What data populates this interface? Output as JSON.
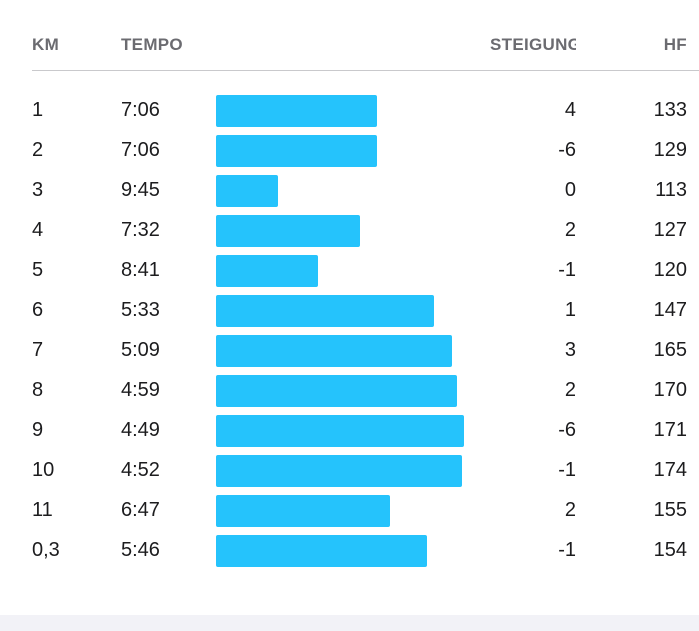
{
  "header": {
    "km": "KM",
    "tempo": "TEMPO",
    "steigung": "STEIGUNG",
    "hf": "HF"
  },
  "splits": [
    {
      "km": "1",
      "tempo": "7:06",
      "steigung": "4",
      "hf": "133",
      "bar_fraction": 0.65
    },
    {
      "km": "2",
      "tempo": "7:06",
      "steigung": "-6",
      "hf": "129",
      "bar_fraction": 0.65
    },
    {
      "km": "3",
      "tempo": "9:45",
      "steigung": "0",
      "hf": "113",
      "bar_fraction": 0.25
    },
    {
      "km": "4",
      "tempo": "7:32",
      "steigung": "2",
      "hf": "127",
      "bar_fraction": 0.58
    },
    {
      "km": "5",
      "tempo": "8:41",
      "steigung": "-1",
      "hf": "120",
      "bar_fraction": 0.41
    },
    {
      "km": "6",
      "tempo": "5:33",
      "steigung": "1",
      "hf": "147",
      "bar_fraction": 0.88
    },
    {
      "km": "7",
      "tempo": "5:09",
      "steigung": "3",
      "hf": "165",
      "bar_fraction": 0.95
    },
    {
      "km": "8",
      "tempo": "4:59",
      "steigung": "2",
      "hf": "170",
      "bar_fraction": 0.97
    },
    {
      "km": "9",
      "tempo": "4:49",
      "steigung": "-6",
      "hf": "171",
      "bar_fraction": 1.0
    },
    {
      "km": "10",
      "tempo": "4:52",
      "steigung": "-1",
      "hf": "174",
      "bar_fraction": 0.99
    },
    {
      "km": "11",
      "tempo": "6:47",
      "steigung": "2",
      "hf": "155",
      "bar_fraction": 0.7
    },
    {
      "km": "0,3",
      "tempo": "5:46",
      "steigung": "-1",
      "hf": "154",
      "bar_fraction": 0.85
    }
  ],
  "colors": {
    "bar": "#25c3fc",
    "header_text": "#6b6b70",
    "text": "#1c1c1e",
    "divider": "#c9c9cc",
    "footer": "#f2f2f7"
  }
}
